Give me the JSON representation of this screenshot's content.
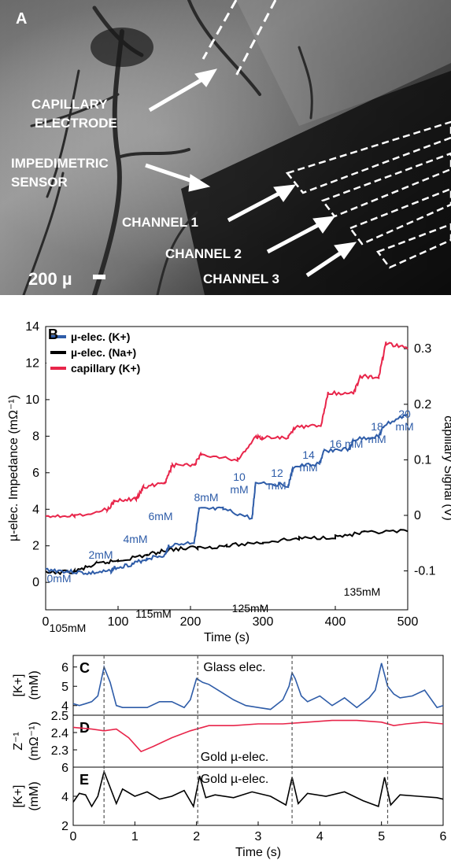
{
  "panelA": {
    "letter": "A",
    "labels": {
      "capillary_1": "CAPILLARY",
      "capillary_2": "ELECTRODE",
      "imped_1": "IMPEDIMETRIC",
      "imped_2": "SENSOR",
      "ch1": "CHANNEL 1",
      "ch2": "CHANNEL 2",
      "ch3": "CHANNEL 3",
      "scale": "200 µ"
    }
  },
  "chart_data": [
    {
      "panel": "B",
      "type": "line",
      "xlabel": "Time (s)",
      "ylabel": "µ-elec. Impedance (mΩ⁻¹)",
      "ylabel_right": "capillary Signal (V)",
      "xlim": [
        0,
        500
      ],
      "ylim": [
        -1.5,
        14
      ],
      "ylim_right": [
        -0.17,
        0.34
      ],
      "xticks": [
        0,
        100,
        200,
        300,
        400,
        500
      ],
      "yticks": [
        0,
        2,
        4,
        6,
        8,
        10,
        12,
        14
      ],
      "yticks_right": [
        -0.1,
        0,
        0.1,
        0.2,
        0.3
      ],
      "xtick_labels": [
        "0",
        "100",
        "200",
        "300",
        "400",
        "500"
      ],
      "ytick_labels": [
        "0",
        "2",
        "4",
        "6",
        "8",
        "10",
        "12",
        "14"
      ],
      "ytick_right_labels": [
        "-0.1",
        "0",
        "0.1",
        "0.2",
        "0.3"
      ],
      "legend_position": "top-left",
      "series": [
        {
          "name": "µ-elec. (K+)",
          "color": "#2e5ca8",
          "axis": "left",
          "x": [
            0,
            30,
            60,
            90,
            95,
            120,
            140,
            165,
            170,
            205,
            212,
            245,
            285,
            290,
            335,
            342,
            378,
            385,
            420,
            425,
            460,
            468,
            500
          ],
          "y": [
            0.7,
            0.6,
            0.5,
            0.6,
            0.8,
            1.0,
            1.3,
            1.5,
            2.0,
            2.2,
            4.0,
            4.0,
            3.5,
            5.5,
            5.3,
            6.3,
            6.5,
            7.2,
            7.3,
            7.8,
            8.0,
            8.6,
            9.2
          ]
        },
        {
          "name": "µ-elec. (Na+)",
          "color": "#000000",
          "axis": "left",
          "x": [
            0,
            40,
            70,
            100,
            140,
            170,
            210,
            250,
            300,
            350,
            400,
            440,
            500
          ],
          "y": [
            0.5,
            0.6,
            1.0,
            1.2,
            1.5,
            1.8,
            1.9,
            2.0,
            2.2,
            2.4,
            2.5,
            2.7,
            2.8
          ]
        },
        {
          "name": "capillary (K+)",
          "color": "#e8254a",
          "axis": "right",
          "x": [
            0,
            40,
            85,
            95,
            125,
            135,
            165,
            175,
            205,
            215,
            265,
            290,
            300,
            335,
            345,
            380,
            390,
            425,
            435,
            460,
            470,
            500
          ],
          "y": [
            0,
            0,
            0.01,
            0.025,
            0.03,
            0.05,
            0.06,
            0.09,
            0.09,
            0.11,
            0.1,
            0.14,
            0.14,
            0.14,
            0.16,
            0.16,
            0.22,
            0.22,
            0.25,
            0.25,
            0.31,
            0.3
          ]
        }
      ],
      "annotations": {
        "k_steps": [
          "0mM",
          "2mM",
          "4mM",
          "6mM",
          "8mM",
          "10",
          "mM",
          "12",
          "mM",
          "14",
          "mM",
          "16 mM",
          "18",
          "mM",
          "20",
          "mM"
        ],
        "na_steps": [
          "105mM",
          "115mM",
          "125mM",
          "135mM"
        ]
      }
    },
    {
      "panel": "C",
      "type": "line",
      "annotation": "Glass elec.",
      "ylabel": "[K+]",
      "ylabel2": "(mM)",
      "ylim": [
        3.5,
        6.6
      ],
      "yticks": [
        4,
        5,
        6
      ],
      "ytick_labels": [
        "4",
        "5",
        "6"
      ],
      "xlim": [
        0,
        6
      ],
      "series": [
        {
          "color": "#2e5ca8",
          "x": [
            0,
            0.1,
            0.2,
            0.3,
            0.4,
            0.5,
            0.6,
            0.7,
            0.8,
            1.0,
            1.2,
            1.4,
            1.6,
            1.8,
            1.9,
            2.0,
            2.1,
            2.2,
            2.4,
            2.6,
            2.8,
            3.0,
            3.2,
            3.4,
            3.5,
            3.55,
            3.6,
            3.7,
            3.8,
            4.0,
            4.2,
            4.4,
            4.6,
            4.8,
            4.9,
            5.0,
            5.1,
            5.2,
            5.3,
            5.5,
            5.7,
            5.9,
            6.0
          ],
          "y": [
            4.1,
            4.0,
            4.1,
            4.2,
            4.5,
            6.0,
            5.2,
            4.0,
            3.9,
            3.9,
            3.9,
            4.2,
            4.2,
            3.9,
            4.3,
            5.4,
            5.2,
            5.1,
            4.7,
            4.3,
            4.0,
            3.9,
            3.8,
            4.3,
            5.0,
            5.7,
            5.4,
            4.5,
            4.2,
            4.5,
            4.0,
            4.4,
            3.9,
            4.4,
            4.8,
            6.2,
            5.0,
            4.6,
            4.4,
            4.5,
            4.8,
            3.9,
            4.0
          ]
        }
      ]
    },
    {
      "panel": "D",
      "type": "line",
      "annotation": "Gold µ-elec.",
      "ylabel": "Z⁻¹",
      "ylabel2": "(mΩ⁻¹)",
      "ylim": [
        2.2,
        2.5
      ],
      "yticks": [
        2.3,
        2.4,
        2.5
      ],
      "ytick_labels": [
        "2.3",
        "2.4",
        "2.5"
      ],
      "xlim": [
        0,
        6
      ],
      "series": [
        {
          "color": "#e8254a",
          "x": [
            0,
            0.3,
            0.5,
            0.7,
            0.9,
            1.1,
            1.3,
            1.6,
            1.9,
            2.2,
            2.6,
            3.0,
            3.4,
            3.8,
            4.2,
            4.6,
            5.0,
            5.2,
            5.4,
            5.7,
            6.0
          ],
          "y": [
            2.43,
            2.42,
            2.41,
            2.42,
            2.37,
            2.29,
            2.32,
            2.37,
            2.41,
            2.44,
            2.44,
            2.45,
            2.45,
            2.46,
            2.47,
            2.47,
            2.46,
            2.44,
            2.45,
            2.46,
            2.45
          ]
        }
      ]
    },
    {
      "panel": "E",
      "type": "line",
      "annotation": "Gold µ-elec.",
      "ylabel": "[K+]",
      "ylabel2": "(mM)",
      "ylim": [
        2,
        6
      ],
      "yticks": [
        2,
        4,
        6
      ],
      "ytick_labels": [
        "2",
        "4",
        "6"
      ],
      "xlim": [
        0,
        6
      ],
      "xlabel": "Time (s)",
      "xticks": [
        0,
        1,
        2,
        3,
        4,
        5,
        6
      ],
      "xtick_labels": [
        "0",
        "1",
        "2",
        "3",
        "4",
        "5",
        "6"
      ],
      "series": [
        {
          "color": "#000000",
          "x": [
            0,
            0.1,
            0.2,
            0.3,
            0.4,
            0.5,
            0.6,
            0.7,
            0.8,
            1.0,
            1.2,
            1.4,
            1.6,
            1.8,
            1.95,
            2.05,
            2.15,
            2.3,
            2.6,
            2.9,
            3.2,
            3.45,
            3.55,
            3.65,
            3.8,
            4.1,
            4.4,
            4.7,
            4.95,
            5.05,
            5.15,
            5.3,
            5.6,
            5.9,
            6.0
          ],
          "y": [
            3.6,
            4.2,
            4.1,
            3.3,
            4.0,
            5.7,
            4.6,
            3.5,
            4.5,
            4.0,
            4.3,
            3.8,
            4.0,
            4.4,
            3.3,
            5.4,
            3.9,
            4.1,
            3.9,
            4.3,
            4.0,
            3.4,
            5.3,
            3.5,
            4.2,
            4.0,
            4.3,
            3.7,
            3.3,
            5.3,
            3.4,
            4.1,
            4.0,
            3.9,
            3.8
          ]
        }
      ],
      "vlines": [
        0.5,
        2.02,
        3.55,
        5.1
      ]
    }
  ]
}
